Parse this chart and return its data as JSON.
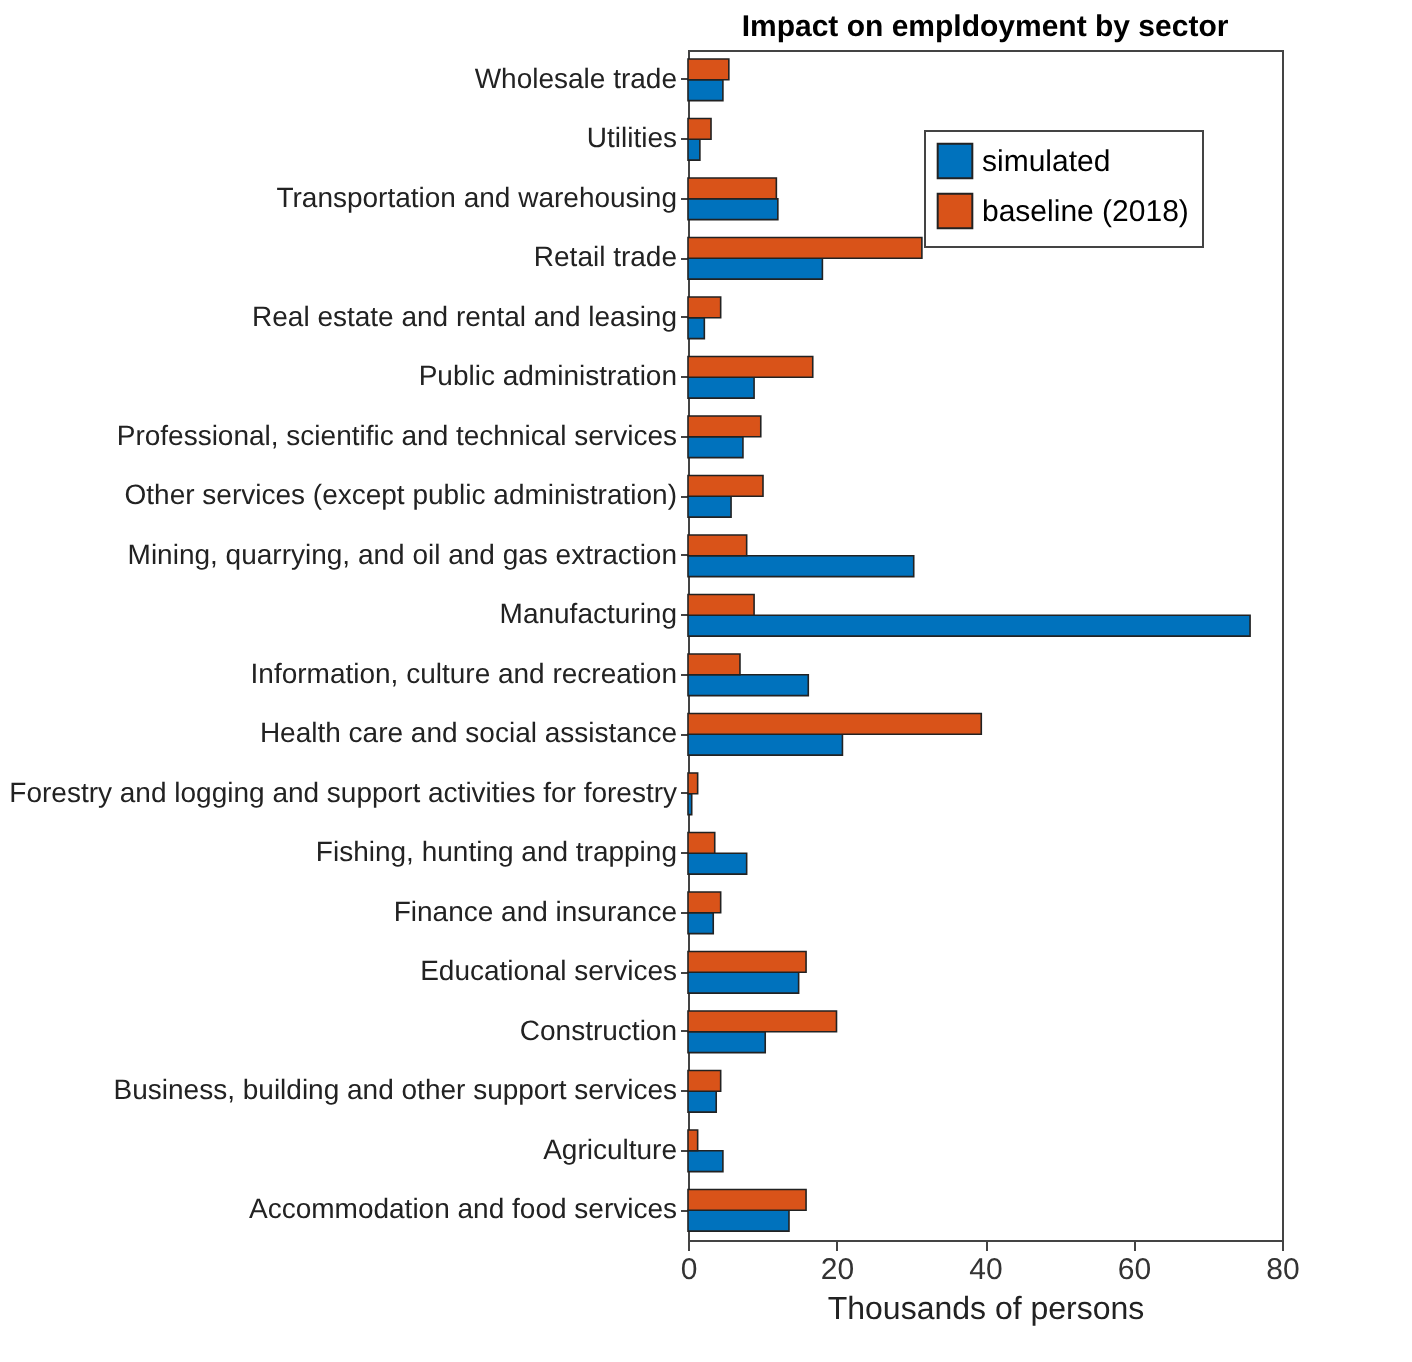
{
  "chart_data": {
    "type": "bar",
    "orientation": "horizontal",
    "title": "Impact on empldoyment by sector",
    "xlabel": "Thousands of persons",
    "categories": [
      "Wholesale trade",
      "Utilities",
      "Transportation and warehousing",
      "Retail trade",
      "Real estate and rental and leasing",
      "Public administration",
      "Professional, scientific and technical services",
      "Other services (except public administration)",
      "Mining, quarrying, and oil and gas extraction",
      "Manufacturing",
      "Information, culture and recreation",
      "Health care and social assistance",
      "Forestry and logging and support activities for forestry",
      "Fishing, hunting and trapping",
      "Finance and insurance",
      "Educational services",
      "Construction",
      "Business, building and other support services",
      "Agriculture",
      "Accommodation and food services"
    ],
    "series": [
      {
        "name": "simulated",
        "color": "#0072bd",
        "values": [
          4.7,
          1.6,
          12.1,
          18.1,
          2.2,
          8.9,
          7.4,
          5.8,
          30.4,
          75.7,
          16.2,
          20.8,
          0.5,
          7.9,
          3.4,
          14.9,
          10.4,
          3.8,
          4.7,
          13.6
        ]
      },
      {
        "name": "baseline (2018)",
        "color": "#d95319",
        "values": [
          5.5,
          3.1,
          11.9,
          31.5,
          4.4,
          16.8,
          9.8,
          10.1,
          7.9,
          8.9,
          7.0,
          39.5,
          1.3,
          3.6,
          4.4,
          15.9,
          20.0,
          4.4,
          1.3,
          15.9
        ]
      }
    ],
    "xlim": [
      0,
      80
    ],
    "xticks": [
      0,
      20,
      40,
      60,
      80
    ],
    "grid": false,
    "legend": "top right"
  }
}
